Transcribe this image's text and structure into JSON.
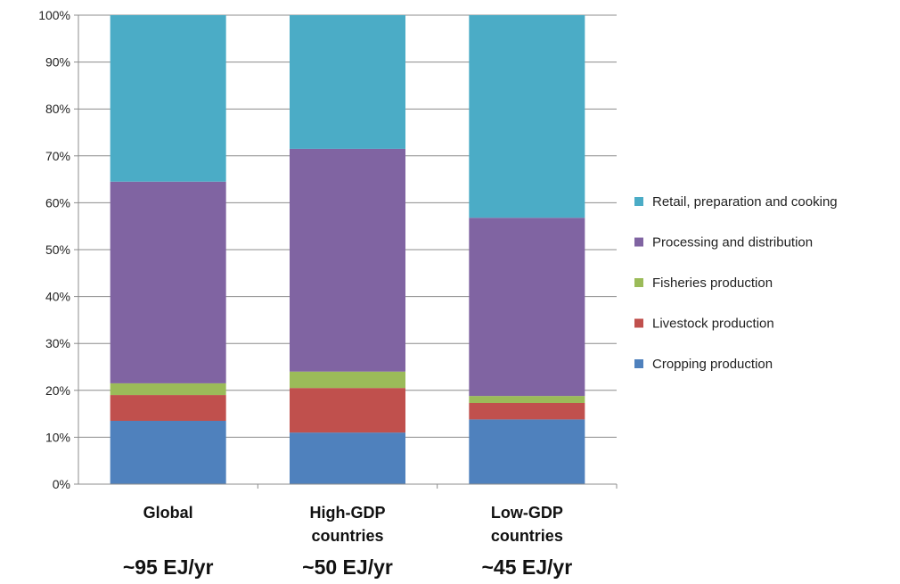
{
  "chart_data": {
    "type": "bar",
    "stacked": true,
    "title": "",
    "xlabel": "",
    "ylabel": "",
    "ylim": [
      0,
      100
    ],
    "yticks": [
      "0%",
      "10%",
      "20%",
      "30%",
      "40%",
      "50%",
      "60%",
      "70%",
      "80%",
      "90%",
      "100%"
    ],
    "grid": true,
    "legend": "right",
    "categories": [
      {
        "lines": [
          "Global"
        ],
        "energy": "~95 EJ/yr"
      },
      {
        "lines": [
          "High-GDP",
          "countries"
        ],
        "energy": "~50 EJ/yr"
      },
      {
        "lines": [
          "Low-GDP",
          "countries"
        ],
        "energy": "~45  EJ/yr"
      }
    ],
    "series": [
      {
        "name": "Cropping production",
        "color": "#4f81bd",
        "values": [
          13.5,
          11,
          13.8
        ]
      },
      {
        "name": "Livestock production",
        "color": "#c0504d",
        "values": [
          5.5,
          9.5,
          3.5
        ]
      },
      {
        "name": "Fisheries production",
        "color": "#9bbb59",
        "values": [
          2.5,
          3.5,
          1.5
        ]
      },
      {
        "name": "Processing and distribution",
        "color": "#8064a2",
        "values": [
          43,
          47.5,
          38
        ]
      },
      {
        "name": "Retail, preparation and cooking",
        "color": "#4bacc6",
        "values": [
          35.5,
          28.5,
          43.2
        ]
      }
    ]
  }
}
